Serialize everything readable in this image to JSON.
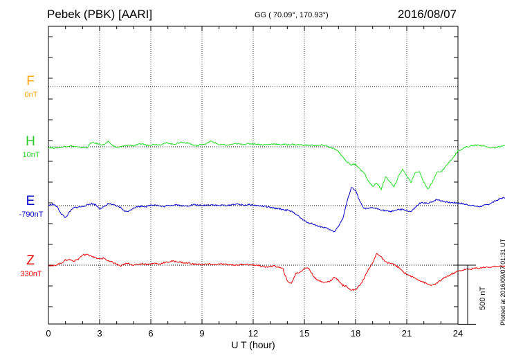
{
  "header": {
    "station": "Pebek (PBK)  [AARI]",
    "coords": "GG ( 70.09°, 170.93°)",
    "date": "2016/08/07"
  },
  "footer_note": "Plotted at 2016/09/07 01:31  UT",
  "scale_bar": {
    "value_nT": 500,
    "label": "500 nT"
  },
  "chart_data": {
    "type": "line",
    "xlabel": "U T (hour)",
    "xlim": [
      0,
      24
    ],
    "xticks": [
      0,
      3,
      6,
      9,
      12,
      15,
      18,
      21,
      24
    ],
    "x_step_hours": 0.25,
    "series": [
      {
        "name": "F",
        "label": "F",
        "baseline": "0nT",
        "color": "#ffa500",
        "values": []
      },
      {
        "name": "H",
        "label": "H",
        "baseline": "10nT",
        "color": "#22dd22",
        "values": [
          -5,
          -10,
          -10,
          -5,
          5,
          8,
          5,
          -5,
          -8,
          -10,
          40,
          35,
          25,
          20,
          50,
          15,
          -5,
          0,
          10,
          15,
          10,
          20,
          30,
          15,
          20,
          25,
          20,
          30,
          40,
          25,
          30,
          45,
          40,
          35,
          15,
          10,
          25,
          30,
          55,
          40,
          20,
          20,
          15,
          25,
          30,
          25,
          25,
          30,
          30,
          25,
          20,
          20,
          25,
          30,
          20,
          25,
          20,
          25,
          20,
          20,
          15,
          15,
          15,
          10,
          15,
          15,
          -10,
          -20,
          -50,
          -100,
          -150,
          -180,
          -170,
          -220,
          -260,
          -340,
          -390,
          -360,
          -420,
          -300,
          -340,
          -400,
          -300,
          -220,
          -290,
          -350,
          -250,
          -250,
          -350,
          -420,
          -350,
          -250,
          -250,
          -200,
          -150,
          -100,
          -40,
          -20,
          0,
          5,
          15,
          15,
          10,
          -5,
          -10,
          -10,
          5,
          10,
          15,
          25,
          20,
          10,
          10,
          5,
          -5,
          -10,
          -5,
          0,
          5,
          15,
          5,
          -10,
          -25,
          -20,
          -10,
          -10,
          -20,
          -25,
          -15,
          -25,
          -35,
          -30,
          -25,
          -20,
          -15,
          -20,
          -25,
          -25,
          -25,
          -20,
          -20,
          -20,
          -20,
          -20,
          -20,
          -20,
          -20,
          -20,
          -20,
          -20,
          -20,
          -20
        ]
      },
      {
        "name": "E",
        "label": "E",
        "baseline": "-790nT",
        "color": "#0000cc",
        "values": [
          0,
          15,
          -10,
          -80,
          -120,
          -60,
          -20,
          -15,
          -10,
          5,
          20,
          10,
          -30,
          -15,
          20,
          10,
          -5,
          -20,
          -60,
          -50,
          -20,
          -10,
          -5,
          -10,
          5,
          10,
          -5,
          -10,
          0,
          5,
          10,
          0,
          -5,
          0,
          10,
          5,
          0,
          5,
          10,
          5,
          0,
          5,
          0,
          10,
          15,
          10,
          5,
          10,
          5,
          0,
          -5,
          -10,
          -20,
          -25,
          -30,
          -40,
          -45,
          -60,
          -80,
          -120,
          -150,
          -170,
          -180,
          -200,
          -210,
          -220,
          -240,
          -260,
          -200,
          -130,
          40,
          180,
          150,
          40,
          -30,
          -30,
          -20,
          -30,
          -40,
          -50,
          -60,
          -50,
          -40,
          -40,
          -50,
          -60,
          -20,
          20,
          30,
          20,
          40,
          60,
          50,
          40,
          30,
          30,
          25,
          20,
          10,
          5,
          -5,
          -10,
          0,
          10,
          30,
          50,
          70,
          80,
          90,
          100,
          90,
          95,
          100,
          105,
          110,
          105,
          100,
          105,
          90,
          80,
          70,
          60,
          80,
          90,
          80,
          80,
          80,
          70,
          60,
          55,
          60,
          30,
          15,
          20,
          10,
          10,
          -15,
          -15,
          -20,
          -20,
          -20,
          -20,
          -20,
          -20,
          -20,
          -20,
          -20,
          -20,
          -20,
          -20,
          -20,
          -20,
          -20,
          -20
        ]
      },
      {
        "name": "Z",
        "label": "Z",
        "baseline": "330nT",
        "color": "#ee0000",
        "values": [
          0,
          -10,
          5,
          20,
          50,
          55,
          40,
          60,
          100,
          105,
          95,
          70,
          60,
          70,
          40,
          30,
          10,
          -10,
          15,
          15,
          0,
          10,
          15,
          10,
          10,
          20,
          10,
          25,
          30,
          40,
          35,
          30,
          20,
          20,
          10,
          10,
          5,
          10,
          10,
          5,
          10,
          10,
          5,
          5,
          0,
          5,
          10,
          5,
          0,
          0,
          -10,
          -20,
          -10,
          -10,
          -20,
          -40,
          -160,
          -180,
          -80,
          -70,
          -30,
          -30,
          -100,
          -150,
          -160,
          -170,
          -160,
          -120,
          -150,
          -200,
          -210,
          -250,
          -240,
          -200,
          -130,
          -40,
          20,
          120,
          80,
          30,
          20,
          5,
          -20,
          -60,
          -90,
          -110,
          -130,
          -150,
          -170,
          -190,
          -200,
          -180,
          -150,
          -120,
          -100,
          -80,
          -60,
          -50,
          -40,
          -40,
          -30,
          -30,
          -20,
          -20,
          -20,
          -10,
          -10,
          -10,
          -5,
          0,
          0,
          -5,
          0,
          5,
          0,
          10,
          15,
          20,
          15,
          5,
          0,
          -5,
          -5,
          -5,
          -5,
          -5,
          -5,
          -5,
          -10,
          -10,
          -15,
          -20,
          -25,
          -25,
          -25,
          -25,
          -20,
          -20,
          -15,
          -20,
          -20,
          -20,
          -20,
          -20,
          -20,
          -20,
          -20,
          -20,
          -20,
          -20,
          -20,
          -20,
          -20
        ]
      }
    ]
  }
}
